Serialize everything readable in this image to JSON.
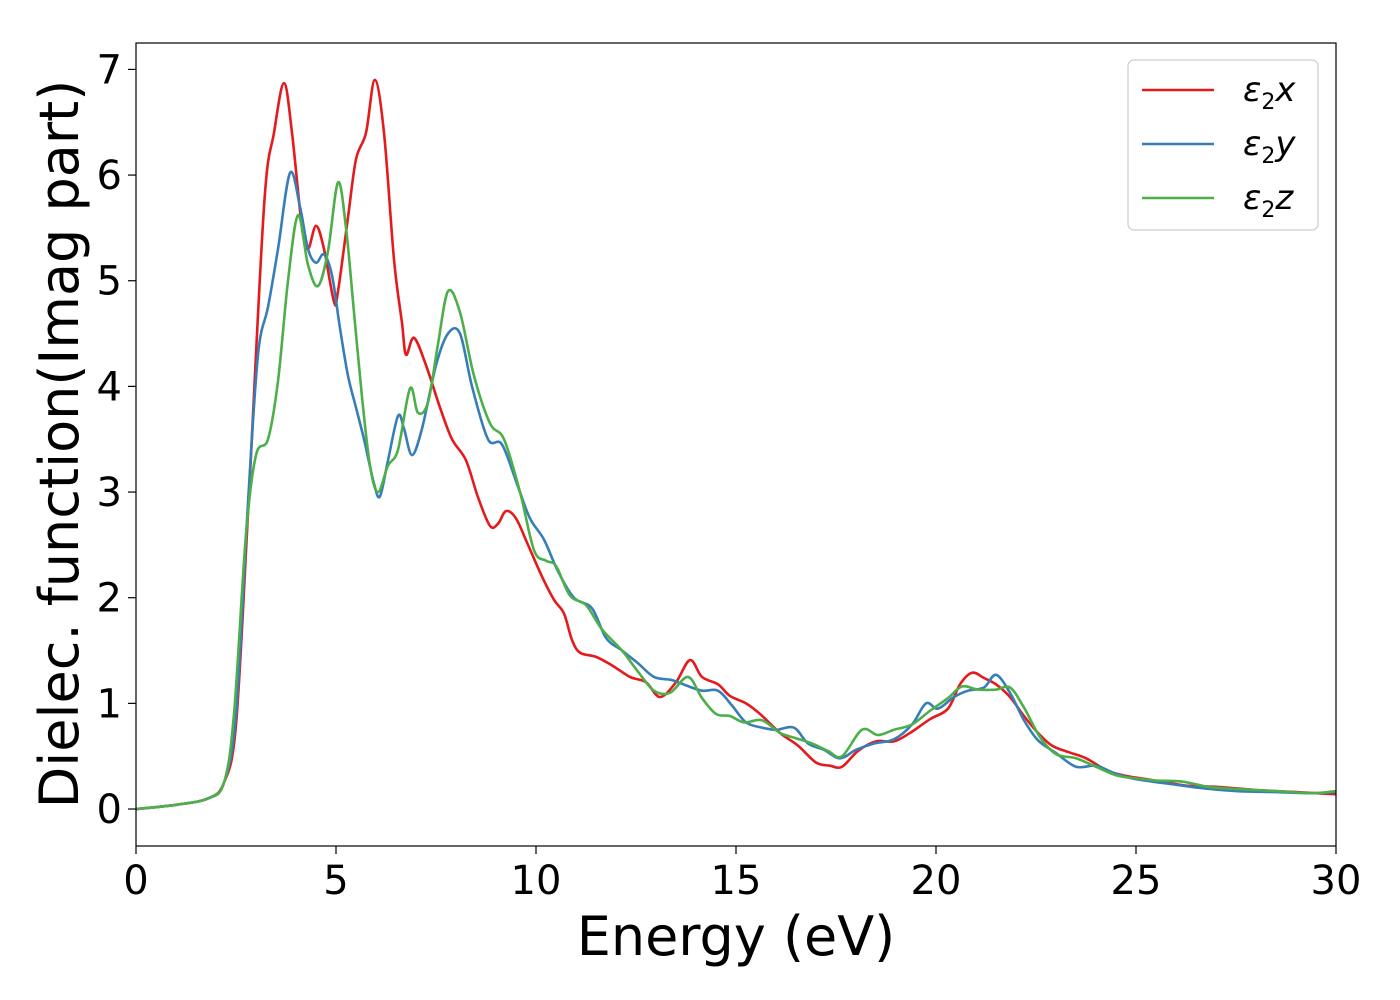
{
  "chart_data": {
    "type": "line",
    "xlabel": "Energy (eV)",
    "ylabel": "Dielec. function(Imag part)",
    "xlim": [
      0,
      30
    ],
    "ylim": [
      -0.35,
      7.25
    ],
    "xticks": [
      0,
      5,
      10,
      15,
      20,
      25,
      30
    ],
    "yticks": [
      0,
      1,
      2,
      3,
      4,
      5,
      6,
      7
    ],
    "grid": false,
    "legend_position": "top-right",
    "series": [
      {
        "name": "ε2x",
        "color": "#e41a1c",
        "points": [
          [
            0,
            0
          ],
          [
            1,
            0.04
          ],
          [
            1.8,
            0.1
          ],
          [
            2.2,
            0.25
          ],
          [
            2.5,
            0.8
          ],
          [
            2.8,
            2.8
          ],
          [
            3.2,
            5.7
          ],
          [
            3.45,
            6.4
          ],
          [
            3.7,
            6.87
          ],
          [
            3.9,
            6.4
          ],
          [
            4.15,
            5.5
          ],
          [
            4.3,
            5.3
          ],
          [
            4.5,
            5.52
          ],
          [
            4.7,
            5.3
          ],
          [
            4.95,
            4.8
          ],
          [
            5.05,
            4.9
          ],
          [
            5.3,
            5.6
          ],
          [
            5.5,
            6.15
          ],
          [
            5.75,
            6.4
          ],
          [
            5.97,
            6.9
          ],
          [
            6.2,
            6.4
          ],
          [
            6.45,
            5.2
          ],
          [
            6.65,
            4.6
          ],
          [
            6.75,
            4.3
          ],
          [
            6.95,
            4.46
          ],
          [
            7.25,
            4.2
          ],
          [
            7.6,
            3.8
          ],
          [
            7.9,
            3.5
          ],
          [
            8.25,
            3.3
          ],
          [
            8.55,
            2.95
          ],
          [
            8.85,
            2.68
          ],
          [
            9.05,
            2.7
          ],
          [
            9.25,
            2.82
          ],
          [
            9.5,
            2.75
          ],
          [
            9.8,
            2.5
          ],
          [
            10.15,
            2.2
          ],
          [
            10.45,
            1.98
          ],
          [
            10.7,
            1.85
          ],
          [
            10.9,
            1.6
          ],
          [
            11.1,
            1.48
          ],
          [
            11.5,
            1.44
          ],
          [
            11.9,
            1.36
          ],
          [
            12.35,
            1.25
          ],
          [
            12.75,
            1.2
          ],
          [
            13.1,
            1.06
          ],
          [
            13.5,
            1.2
          ],
          [
            13.85,
            1.41
          ],
          [
            14.15,
            1.25
          ],
          [
            14.55,
            1.18
          ],
          [
            14.85,
            1.07
          ],
          [
            15.25,
            1.0
          ],
          [
            15.6,
            0.9
          ],
          [
            16.1,
            0.72
          ],
          [
            16.55,
            0.6
          ],
          [
            17.0,
            0.44
          ],
          [
            17.35,
            0.41
          ],
          [
            17.65,
            0.4
          ],
          [
            18.05,
            0.55
          ],
          [
            18.5,
            0.64
          ],
          [
            18.95,
            0.64
          ],
          [
            19.35,
            0.72
          ],
          [
            19.85,
            0.85
          ],
          [
            20.3,
            0.95
          ],
          [
            20.6,
            1.18
          ],
          [
            20.9,
            1.29
          ],
          [
            21.2,
            1.24
          ],
          [
            21.5,
            1.18
          ],
          [
            21.85,
            1.06
          ],
          [
            22.2,
            0.88
          ],
          [
            22.55,
            0.72
          ],
          [
            22.9,
            0.6
          ],
          [
            23.3,
            0.54
          ],
          [
            23.75,
            0.48
          ],
          [
            24.3,
            0.36
          ],
          [
            24.8,
            0.31
          ],
          [
            25.3,
            0.28
          ],
          [
            25.8,
            0.25
          ],
          [
            26.3,
            0.22
          ],
          [
            27.0,
            0.21
          ],
          [
            28.0,
            0.18
          ],
          [
            29.0,
            0.16
          ],
          [
            30,
            0.14
          ]
        ]
      },
      {
        "name": "ε2y",
        "color": "#377eb8",
        "points": [
          [
            0,
            0
          ],
          [
            1,
            0.04
          ],
          [
            1.8,
            0.1
          ],
          [
            2.2,
            0.25
          ],
          [
            2.5,
            0.9
          ],
          [
            2.8,
            2.9
          ],
          [
            3.05,
            4.3
          ],
          [
            3.3,
            4.75
          ],
          [
            3.55,
            5.3
          ],
          [
            3.85,
            6.02
          ],
          [
            4.1,
            5.7
          ],
          [
            4.3,
            5.3
          ],
          [
            4.5,
            5.17
          ],
          [
            4.7,
            5.25
          ],
          [
            4.9,
            5.05
          ],
          [
            5.1,
            4.55
          ],
          [
            5.3,
            4.1
          ],
          [
            5.5,
            3.8
          ],
          [
            5.7,
            3.5
          ],
          [
            5.95,
            3.08
          ],
          [
            6.1,
            2.96
          ],
          [
            6.3,
            3.3
          ],
          [
            6.55,
            3.72
          ],
          [
            6.7,
            3.6
          ],
          [
            6.9,
            3.35
          ],
          [
            7.15,
            3.6
          ],
          [
            7.5,
            4.2
          ],
          [
            7.8,
            4.5
          ],
          [
            8.1,
            4.5
          ],
          [
            8.4,
            4.0
          ],
          [
            8.8,
            3.5
          ],
          [
            9.15,
            3.45
          ],
          [
            9.55,
            3.05
          ],
          [
            9.85,
            2.75
          ],
          [
            10.2,
            2.55
          ],
          [
            10.55,
            2.25
          ],
          [
            10.95,
            2.0
          ],
          [
            11.4,
            1.9
          ],
          [
            11.75,
            1.62
          ],
          [
            12.15,
            1.5
          ],
          [
            12.55,
            1.38
          ],
          [
            12.95,
            1.25
          ],
          [
            13.4,
            1.22
          ],
          [
            13.75,
            1.17
          ],
          [
            14.15,
            1.12
          ],
          [
            14.55,
            1.12
          ],
          [
            14.9,
            0.98
          ],
          [
            15.25,
            0.82
          ],
          [
            15.65,
            0.77
          ],
          [
            16.0,
            0.75
          ],
          [
            16.45,
            0.77
          ],
          [
            16.8,
            0.62
          ],
          [
            17.2,
            0.56
          ],
          [
            17.6,
            0.48
          ],
          [
            18.0,
            0.56
          ],
          [
            18.45,
            0.62
          ],
          [
            18.95,
            0.66
          ],
          [
            19.4,
            0.8
          ],
          [
            19.75,
            1.0
          ],
          [
            20.05,
            0.95
          ],
          [
            20.45,
            1.06
          ],
          [
            20.8,
            1.12
          ],
          [
            21.2,
            1.15
          ],
          [
            21.5,
            1.27
          ],
          [
            21.85,
            1.1
          ],
          [
            22.2,
            0.84
          ],
          [
            22.55,
            0.65
          ],
          [
            23.0,
            0.53
          ],
          [
            23.5,
            0.4
          ],
          [
            24.0,
            0.41
          ],
          [
            24.45,
            0.34
          ],
          [
            24.9,
            0.29
          ],
          [
            25.4,
            0.26
          ],
          [
            26.0,
            0.23
          ],
          [
            26.6,
            0.2
          ],
          [
            27.5,
            0.17
          ],
          [
            28.5,
            0.16
          ],
          [
            29.3,
            0.15
          ],
          [
            30,
            0.16
          ]
        ]
      },
      {
        "name": "ε2z",
        "color": "#4daf4a",
        "points": [
          [
            0,
            0
          ],
          [
            1,
            0.04
          ],
          [
            1.8,
            0.1
          ],
          [
            2.2,
            0.25
          ],
          [
            2.45,
            0.9
          ],
          [
            2.75,
            2.6
          ],
          [
            3.0,
            3.35
          ],
          [
            3.3,
            3.5
          ],
          [
            3.55,
            4.05
          ],
          [
            3.8,
            5.0
          ],
          [
            4.05,
            5.62
          ],
          [
            4.3,
            5.15
          ],
          [
            4.55,
            4.95
          ],
          [
            4.8,
            5.28
          ],
          [
            5.05,
            5.93
          ],
          [
            5.25,
            5.5
          ],
          [
            5.45,
            4.7
          ],
          [
            5.65,
            3.9
          ],
          [
            5.85,
            3.25
          ],
          [
            6.05,
            3.0
          ],
          [
            6.3,
            3.25
          ],
          [
            6.55,
            3.4
          ],
          [
            6.85,
            3.98
          ],
          [
            7.05,
            3.75
          ],
          [
            7.3,
            3.85
          ],
          [
            7.55,
            4.4
          ],
          [
            7.8,
            4.9
          ],
          [
            8.1,
            4.7
          ],
          [
            8.45,
            4.1
          ],
          [
            8.85,
            3.65
          ],
          [
            9.2,
            3.5
          ],
          [
            9.6,
            3.0
          ],
          [
            9.95,
            2.45
          ],
          [
            10.25,
            2.35
          ],
          [
            10.5,
            2.3
          ],
          [
            10.85,
            2.02
          ],
          [
            11.25,
            1.93
          ],
          [
            11.65,
            1.7
          ],
          [
            12.15,
            1.5
          ],
          [
            12.55,
            1.3
          ],
          [
            12.95,
            1.12
          ],
          [
            13.35,
            1.1
          ],
          [
            13.8,
            1.25
          ],
          [
            14.15,
            1.05
          ],
          [
            14.5,
            0.9
          ],
          [
            14.85,
            0.88
          ],
          [
            15.2,
            0.82
          ],
          [
            15.65,
            0.84
          ],
          [
            16.1,
            0.72
          ],
          [
            16.5,
            0.67
          ],
          [
            16.9,
            0.62
          ],
          [
            17.3,
            0.55
          ],
          [
            17.65,
            0.5
          ],
          [
            18.15,
            0.75
          ],
          [
            18.55,
            0.7
          ],
          [
            18.95,
            0.75
          ],
          [
            19.4,
            0.8
          ],
          [
            19.85,
            0.93
          ],
          [
            20.3,
            1.05
          ],
          [
            20.65,
            1.16
          ],
          [
            21.05,
            1.13
          ],
          [
            21.5,
            1.13
          ],
          [
            21.85,
            1.15
          ],
          [
            22.2,
            0.96
          ],
          [
            22.6,
            0.68
          ],
          [
            23.0,
            0.52
          ],
          [
            23.5,
            0.48
          ],
          [
            24.0,
            0.4
          ],
          [
            24.5,
            0.32
          ],
          [
            25.0,
            0.29
          ],
          [
            25.5,
            0.27
          ],
          [
            26.15,
            0.26
          ],
          [
            26.8,
            0.21
          ],
          [
            27.5,
            0.19
          ],
          [
            28.5,
            0.17
          ],
          [
            29.4,
            0.15
          ],
          [
            30,
            0.17
          ]
        ]
      }
    ]
  }
}
